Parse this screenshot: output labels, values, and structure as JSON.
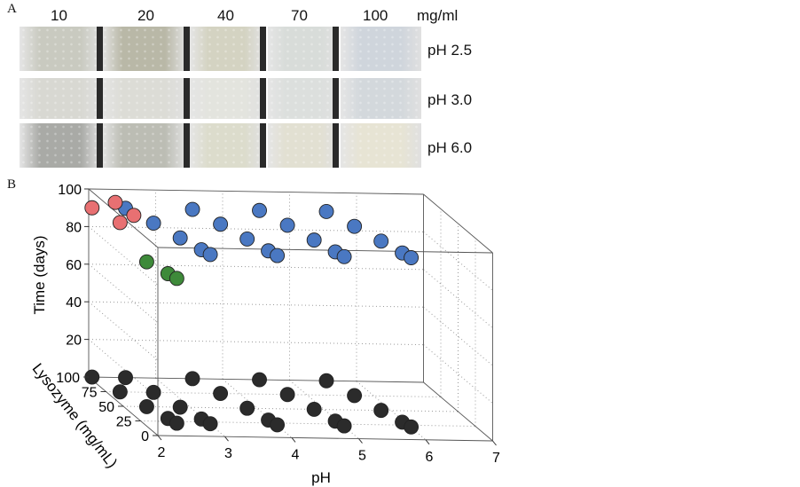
{
  "panel_a": {
    "letter": "A",
    "concentrations": [
      "10",
      "20",
      "40",
      "70",
      "100"
    ],
    "unit": "mg/ml",
    "rows": [
      {
        "label": "pH 2.5",
        "tint": [
          "#c9cac0",
          "#b9b8a7",
          "#d4d3c2",
          "#d8dcd9",
          "#cfd5dc"
        ]
      },
      {
        "label": "pH 3.0",
        "tint": [
          "#d8d8d2",
          "#dcdcd6",
          "#e3e4de",
          "#dcdfdd",
          "#d3d8dc"
        ]
      },
      {
        "label": "pH 6.0",
        "tint": [
          "#a9aaa6",
          "#bcbdb4",
          "#dcdccc",
          "#e2e0d2",
          "#e7e4d4"
        ]
      }
    ]
  },
  "panel_b": {
    "letter": "B",
    "chart_data": {
      "type": "scatter",
      "x": {
        "label": "pH",
        "ticks": [
          "2",
          "3",
          "4",
          "5",
          "6",
          "7"
        ],
        "range": [
          2,
          7
        ]
      },
      "y": {
        "label": "Lysozyme (mg/mL)",
        "ticks": [
          "0",
          "25",
          "50",
          "75",
          "100"
        ],
        "range": [
          0,
          100
        ]
      },
      "z": {
        "label": "Time (days)",
        "ticks": [
          "20",
          "40",
          "60",
          "80",
          "100"
        ],
        "range": [
          0,
          100
        ]
      },
      "grid": true,
      "colors": {
        "top_red": "#e87072",
        "top_green": "#3e8a3a",
        "top_blue": "#4a78c2",
        "floor": "#2b2b2b"
      },
      "groups": [
        {
          "ph": 2.5,
          "points": [
            {
              "lys": 100,
              "day": 90,
              "color": "red"
            },
            {
              "lys": 70,
              "day": 90,
              "color": "red"
            },
            {
              "lys": 40,
              "day": 77,
              "color": "green"
            },
            {
              "lys": 20,
              "day": 77,
              "color": "green"
            },
            {
              "lys": 10,
              "day": 77,
              "color": "green"
            }
          ]
        },
        {
          "ph": 2.5,
          "offset": 1,
          "points": [
            {
              "lys": 100,
              "day": 90,
              "color": "red"
            },
            {
              "lys": 70,
              "day": 90,
              "color": "red"
            }
          ]
        },
        {
          "ph": 3.0,
          "points": [
            {
              "lys": 100,
              "day": 90,
              "color": "blue"
            },
            {
              "lys": 70,
              "day": 90,
              "color": "blue"
            },
            {
              "lys": 40,
              "day": 90,
              "color": "blue"
            },
            {
              "lys": 20,
              "day": 90,
              "color": "blue"
            },
            {
              "lys": 10,
              "day": 90,
              "color": "blue"
            }
          ]
        },
        {
          "ph": 4.0,
          "points": [
            {
              "lys": 100,
              "day": 90,
              "color": "blue"
            },
            {
              "lys": 70,
              "day": 90,
              "color": "blue"
            },
            {
              "lys": 40,
              "day": 90,
              "color": "blue"
            },
            {
              "lys": 20,
              "day": 90,
              "color": "blue"
            },
            {
              "lys": 10,
              "day": 90,
              "color": "blue"
            }
          ]
        },
        {
          "ph": 5.0,
          "points": [
            {
              "lys": 100,
              "day": 90,
              "color": "blue"
            },
            {
              "lys": 70,
              "day": 90,
              "color": "blue"
            },
            {
              "lys": 40,
              "day": 90,
              "color": "blue"
            },
            {
              "lys": 20,
              "day": 90,
              "color": "blue"
            },
            {
              "lys": 10,
              "day": 90,
              "color": "blue"
            }
          ]
        },
        {
          "ph": 6.0,
          "points": [
            {
              "lys": 100,
              "day": 90,
              "color": "blue"
            },
            {
              "lys": 70,
              "day": 90,
              "color": "blue"
            },
            {
              "lys": 40,
              "day": 90,
              "color": "blue"
            },
            {
              "lys": 20,
              "day": 90,
              "color": "blue"
            },
            {
              "lys": 10,
              "day": 90,
              "color": "blue"
            }
          ]
        }
      ]
    }
  }
}
